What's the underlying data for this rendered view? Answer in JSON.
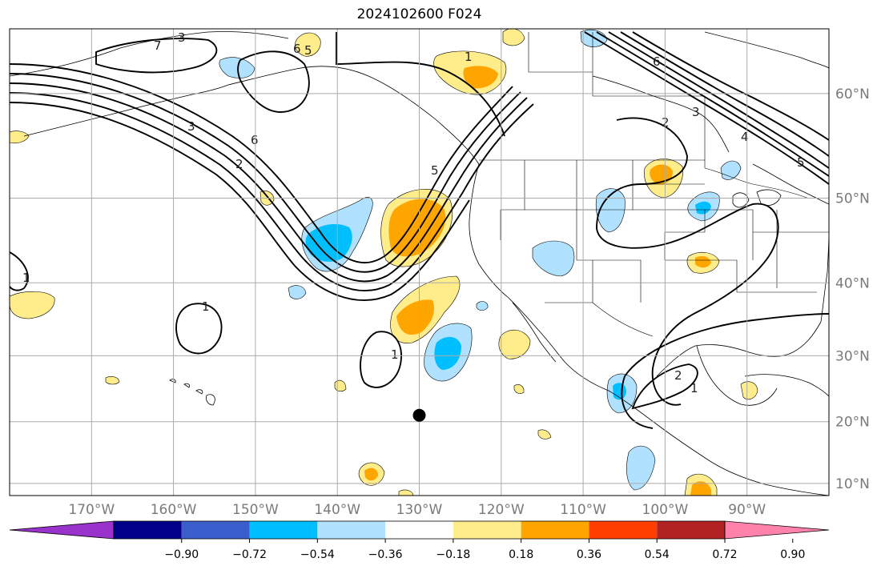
{
  "title": "2024102600 F024",
  "map": {
    "extent_lon": [
      -180,
      -80
    ],
    "extent_lat": [
      8,
      65
    ],
    "lon_ticks": [
      {
        "lon": -170,
        "label": "170°W"
      },
      {
        "lon": -160,
        "label": "160°W"
      },
      {
        "lon": -150,
        "label": "150°W"
      },
      {
        "lon": -140,
        "label": "140°W"
      },
      {
        "lon": -130,
        "label": "130°W"
      },
      {
        "lon": -120,
        "label": "120°W"
      },
      {
        "lon": -110,
        "label": "110°W"
      },
      {
        "lon": -100,
        "label": "100°W"
      },
      {
        "lon": -90,
        "label": "90°W"
      }
    ],
    "lat_ticks": [
      {
        "lat": 60,
        "label": "60°N"
      },
      {
        "lat": 50,
        "label": "50°N"
      },
      {
        "lat": 40,
        "label": "40°N"
      },
      {
        "lat": 30,
        "label": "30°N"
      },
      {
        "lat": 20,
        "label": "20°N"
      },
      {
        "lat": 10,
        "label": "10°N"
      }
    ],
    "marker": {
      "lon": -130,
      "lat": 21
    },
    "contour_labels": [
      "1",
      "2",
      "3",
      "4",
      "5",
      "6",
      "7"
    ],
    "colors": {
      "grid": "#aaaaaa",
      "coast": "#000000",
      "contour": "#000000",
      "marker": "#000000"
    }
  },
  "colorbar": {
    "labels": [
      "−0.90",
      "−0.72",
      "−0.54",
      "−0.36",
      "−0.18",
      "0.18",
      "0.36",
      "0.54",
      "0.72",
      "0.90"
    ],
    "colors": [
      "#9a33cc",
      "#00008b",
      "#3a5fcd",
      "#00bfff",
      "#b0e2ff",
      "#ffffff",
      "#ffec8b",
      "#ffa500",
      "#ff3e00",
      "#b22222",
      "#ff82ab"
    ]
  }
}
